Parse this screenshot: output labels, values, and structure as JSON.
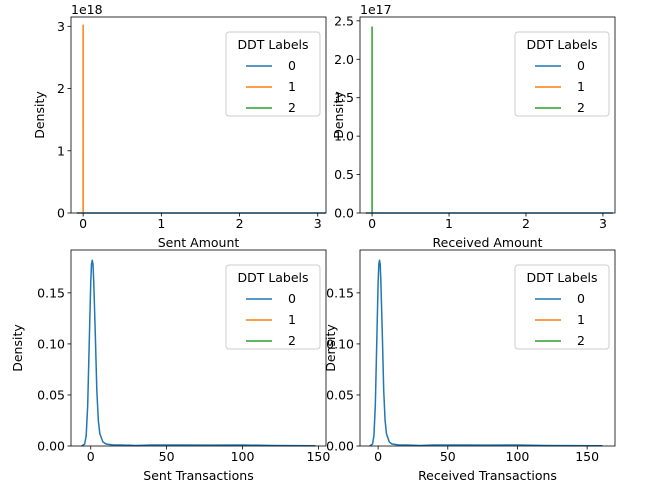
{
  "chart_data": [
    {
      "type": "line",
      "xlabel": "Sent Amount",
      "ylabel": "Density",
      "offset_text": "1e18",
      "xlim": [
        -0.1553,
        3.1053
      ],
      "ylim": [
        0,
        3.15
      ],
      "xticks": [
        0,
        1,
        2,
        3
      ],
      "yticks": [
        0,
        1,
        2,
        3
      ],
      "legend": {
        "title": "DDT Labels",
        "placement": "upper right"
      },
      "series": [
        {
          "name": "0",
          "color": "#1f77b4",
          "x": [
            -0.08,
            0,
            0.5,
            1,
            1.5,
            2,
            2.5,
            3.1
          ],
          "y": [
            0,
            0,
            0,
            0,
            0,
            0,
            0,
            0
          ]
        },
        {
          "name": "1",
          "color": "#ff7f0e",
          "x": [
            -0.0001,
            0,
            0.0001
          ],
          "y": [
            0,
            3.02,
            0
          ]
        },
        {
          "name": "2",
          "color": "#2ca02c",
          "x": [],
          "y": []
        }
      ]
    },
    {
      "type": "line",
      "xlabel": "Received Amount",
      "ylabel": "Density",
      "offset_text": "1e17",
      "xlim": [
        -0.157,
        3.157
      ],
      "ylim": [
        0,
        2.55
      ],
      "xticks": [
        0,
        1,
        2,
        3
      ],
      "yticks": [
        0.0,
        0.5,
        1.0,
        1.5,
        2.0,
        2.5
      ],
      "legend": {
        "title": "DDT Labels",
        "placement": "upper right"
      },
      "series": [
        {
          "name": "0",
          "color": "#1f77b4",
          "x": [
            -0.08,
            0,
            0.5,
            1,
            1.5,
            2,
            2.5,
            3.13
          ],
          "y": [
            0,
            0,
            0,
            0,
            0,
            0,
            0,
            0
          ]
        },
        {
          "name": "1",
          "color": "#ff7f0e",
          "x": [],
          "y": []
        },
        {
          "name": "2",
          "color": "#2ca02c",
          "x": [
            -0.0001,
            0,
            0.0001
          ],
          "y": [
            0,
            2.42,
            0
          ]
        }
      ]
    },
    {
      "type": "line",
      "xlabel": "Sent Transactions",
      "ylabel": "Density",
      "xlim": [
        -13,
        155
      ],
      "ylim": [
        0,
        0.192
      ],
      "xticks": [
        0,
        50,
        100,
        150
      ],
      "yticks": [
        0.0,
        0.05,
        0.1,
        0.15
      ],
      "legend": {
        "title": "DDT Labels",
        "placement": "upper right"
      },
      "series": [
        {
          "name": "0",
          "color": "#1f77b4",
          "x": [
            -6,
            -4,
            -3,
            -2,
            -1,
            0,
            0.5,
            1,
            1.5,
            2,
            3,
            4,
            5,
            6,
            8,
            10,
            15,
            20,
            30,
            40,
            60,
            80,
            100,
            120,
            148
          ],
          "y": [
            0.0,
            0.002,
            0.01,
            0.04,
            0.1,
            0.16,
            0.178,
            0.182,
            0.178,
            0.16,
            0.11,
            0.055,
            0.025,
            0.012,
            0.004,
            0.002,
            0.001,
            0.001,
            0.0005,
            0.001,
            0.001,
            0.0008,
            0.001,
            0.0005,
            0.0003
          ]
        },
        {
          "name": "1",
          "color": "#ff7f0e",
          "x": [],
          "y": []
        },
        {
          "name": "2",
          "color": "#2ca02c",
          "x": [],
          "y": []
        }
      ]
    },
    {
      "type": "line",
      "xlabel": "Received Transactions",
      "ylabel": "Density",
      "xlim": [
        -13,
        170
      ],
      "ylim": [
        0,
        0.192
      ],
      "xticks": [
        0,
        50,
        100,
        150
      ],
      "yticks": [
        0.0,
        0.05,
        0.1,
        0.15
      ],
      "legend": {
        "title": "DDT Labels",
        "placement": "upper right"
      },
      "series": [
        {
          "name": "0",
          "color": "#1f77b4",
          "x": [
            -6,
            -4,
            -3,
            -2,
            -1,
            0,
            0.5,
            1,
            1.5,
            2,
            3,
            4,
            5,
            6,
            8,
            10,
            15,
            20,
            30,
            40,
            60,
            80,
            100,
            120,
            140,
            161
          ],
          "y": [
            0.0,
            0.002,
            0.01,
            0.04,
            0.1,
            0.16,
            0.178,
            0.182,
            0.178,
            0.16,
            0.11,
            0.055,
            0.025,
            0.012,
            0.004,
            0.002,
            0.001,
            0.001,
            0.0005,
            0.001,
            0.001,
            0.0008,
            0.001,
            0.0005,
            0.0004,
            0.0003
          ]
        },
        {
          "name": "1",
          "color": "#ff7f0e",
          "x": [],
          "y": []
        },
        {
          "name": "2",
          "color": "#2ca02c",
          "x": [],
          "y": []
        }
      ]
    }
  ]
}
